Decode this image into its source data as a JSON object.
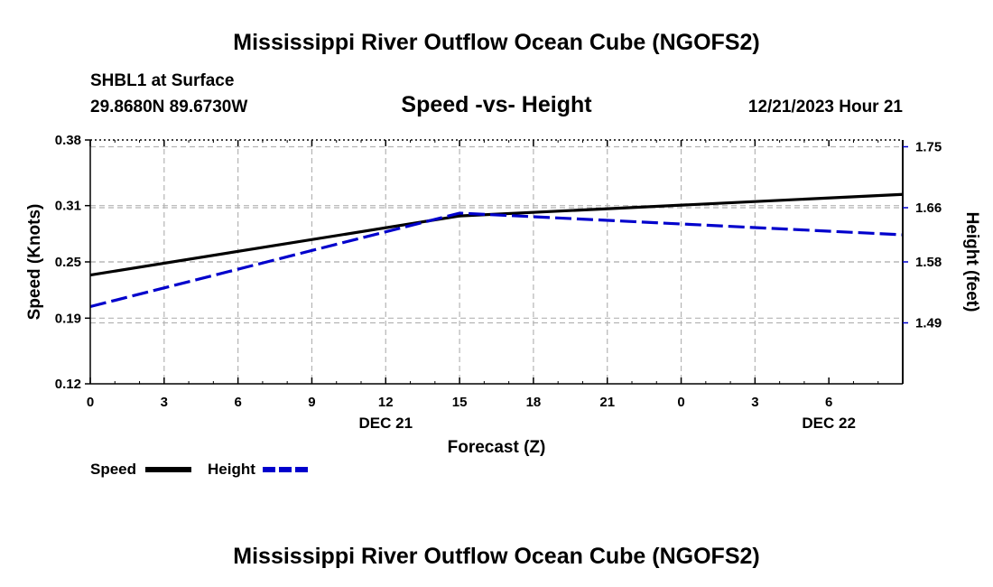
{
  "header": {
    "main_title": "Mississippi River Outflow Ocean Cube (NGOFS2)",
    "station": "SHBL1 at Surface",
    "coords": "29.8680N  89.6730W",
    "datetime": "12/21/2023 Hour 21"
  },
  "footer": {
    "repeat_title": "Mississippi River Outflow Ocean Cube (NGOFS2)"
  },
  "colors": {
    "speed": "#000000",
    "height": "#0000cc",
    "grid": "#b4b4b4"
  },
  "chart_data": {
    "type": "line",
    "title": "Speed -vs- Height",
    "xlabel": "Forecast (Z)",
    "ylabel": "Speed (Knots)",
    "y2label": "Height (feet)",
    "x_hours": [
      0,
      33
    ],
    "x_tick_labels": [
      "0",
      "3",
      "6",
      "9",
      "12",
      "15",
      "18",
      "21",
      "0",
      "3",
      "6"
    ],
    "date_labels": [
      {
        "hour": 12,
        "label": "DEC 21"
      },
      {
        "hour": 30,
        "label": "DEC 22"
      }
    ],
    "ylim": [
      0.12,
      0.38
    ],
    "y_ticks": [
      0.38,
      0.31,
      0.25,
      0.19,
      0.12
    ],
    "y_tick_labels": [
      "0.38",
      "0.31",
      "0.25",
      "0.19",
      "0.12"
    ],
    "y2lim": [
      1.4,
      1.76
    ],
    "y2_ticks": [
      1.75,
      1.66,
      1.58,
      1.49
    ],
    "y2_tick_labels": [
      "1.75",
      "1.66",
      "1.58",
      "1.49"
    ],
    "grid": true,
    "legend_position": "bottom-left",
    "series": [
      {
        "name": "Speed",
        "axis": "left",
        "style": "solid",
        "x": [
          0,
          15,
          33
        ],
        "values": [
          0.236,
          0.299,
          0.322
        ]
      },
      {
        "name": "Height",
        "axis": "right",
        "style": "dashed",
        "x": [
          0,
          15,
          33
        ],
        "values": [
          1.514,
          1.652,
          1.62
        ]
      }
    ]
  }
}
